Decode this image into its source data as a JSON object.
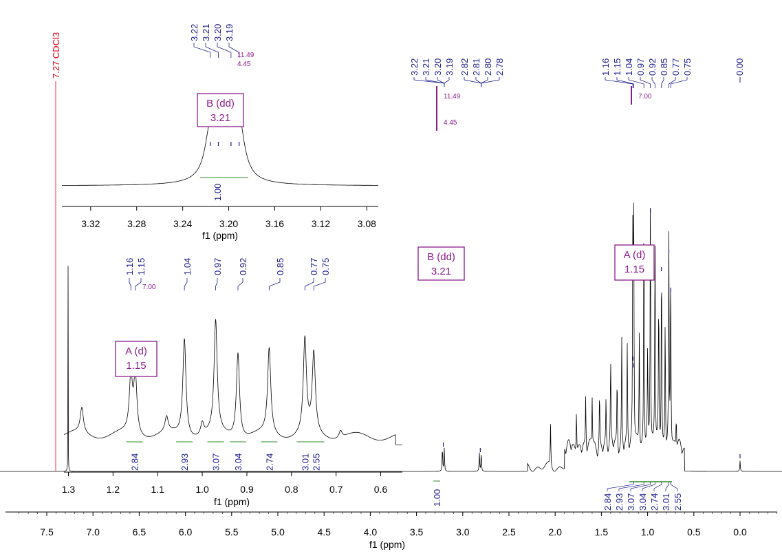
{
  "chart_data": {
    "type": "line",
    "title": "",
    "colors": {
      "trace": "#000000",
      "peak_label": "#1a1a8c",
      "solvent_label": "#e0001a",
      "multiplet": "#8b1a8b",
      "integral": "#2e8b2e"
    },
    "main": {
      "xlabel": "f1 (ppm)",
      "xlim": [
        7.9,
        -0.5
      ],
      "reversed": true,
      "xticks": [
        "7.5",
        "7.0",
        "6.5",
        "6.0",
        "5.5",
        "5.0",
        "4.5",
        "4.0",
        "3.5",
        "3.0",
        "2.5",
        "2.0",
        "1.5",
        "1.0",
        "0.5",
        "0.0"
      ],
      "peak_labels": [
        "3.22",
        "3.21",
        "3.20",
        "3.19",
        "2.82",
        "2.81",
        "2.80",
        "2.78",
        "1.16",
        "1.15",
        "1.04",
        "0.97",
        "0.92",
        "0.85",
        "0.77",
        "0.75",
        "0.00"
      ],
      "solvent_label": "7.27 CDCl3",
      "solvent_ppm": 7.27,
      "integrals": [
        {
          "ppm": 3.205,
          "value": "1.00"
        },
        {
          "ppm": 1.15,
          "value": "2.84"
        },
        {
          "ppm": 1.04,
          "value": "2.93"
        },
        {
          "ppm": 0.97,
          "value": "3.07"
        },
        {
          "ppm": 0.92,
          "value": "3.04"
        },
        {
          "ppm": 0.85,
          "value": "2.74"
        },
        {
          "ppm": 0.77,
          "value": "3.01"
        },
        {
          "ppm": 0.75,
          "value": "2.55"
        }
      ],
      "multiplets": [
        {
          "name": "B (dd)",
          "shift": "3.21",
          "j": [
            "11.49",
            "4.45"
          ],
          "ppm": 3.205
        },
        {
          "name": "A (d)",
          "shift": "1.15",
          "j": [
            "7.00"
          ],
          "ppm": 1.155
        }
      ],
      "peaks": [
        {
          "ppm": 1.16,
          "h": 0.82
        },
        {
          "ppm": 1.15,
          "h": 0.86
        },
        {
          "ppm": 1.04,
          "h": 0.96
        },
        {
          "ppm": 0.97,
          "h": 1.0
        },
        {
          "ppm": 0.92,
          "h": 0.84
        },
        {
          "ppm": 0.85,
          "h": 0.75
        },
        {
          "ppm": 0.77,
          "h": 0.78
        },
        {
          "ppm": 0.75,
          "h": 0.68
        },
        {
          "ppm": 0.88,
          "h": 0.55
        },
        {
          "ppm": 1.28,
          "h": 0.42
        },
        {
          "ppm": 1.4,
          "h": 0.33
        },
        {
          "ppm": 1.33,
          "h": 0.27
        },
        {
          "ppm": 1.22,
          "h": 0.38
        },
        {
          "ppm": 1.09,
          "h": 0.45
        },
        {
          "ppm": 1.0,
          "h": 0.35
        },
        {
          "ppm": 0.81,
          "h": 0.5
        },
        {
          "ppm": 0.69,
          "h": 0.12
        },
        {
          "ppm": 1.52,
          "h": 0.22
        },
        {
          "ppm": 1.6,
          "h": 0.2
        },
        {
          "ppm": 1.67,
          "h": 0.2
        },
        {
          "ppm": 1.77,
          "h": 0.18
        },
        {
          "ppm": 2.05,
          "h": 0.16
        },
        {
          "ppm": 1.45,
          "h": 0.18
        },
        {
          "ppm": 3.22,
          "h": 0.09
        },
        {
          "ppm": 3.2,
          "h": 0.09
        },
        {
          "ppm": 2.82,
          "h": 0.07
        },
        {
          "ppm": 2.8,
          "h": 0.07
        },
        {
          "ppm": 0.0,
          "h": 0.04
        }
      ]
    },
    "inset_b": {
      "xlabel": "f1 (ppm)",
      "xlim": [
        3.345,
        3.07
      ],
      "xticks": [
        "3.32",
        "3.28",
        "3.24",
        "3.20",
        "3.16",
        "3.12",
        "3.08"
      ],
      "integral": {
        "ppm_from": 3.225,
        "ppm_to": 3.183,
        "value": "1.00"
      },
      "multiplet": {
        "name": "B (dd)",
        "shift": "3.21"
      },
      "peaks": [
        {
          "ppm": 3.216,
          "h": 0.72
        },
        {
          "ppm": 3.209,
          "h": 0.77
        },
        {
          "ppm": 3.198,
          "h": 0.92
        },
        {
          "ppm": 3.191,
          "h": 0.8
        }
      ]
    },
    "inset_a": {
      "xlabel": "f1 (ppm)",
      "xlim": [
        1.31,
        0.57
      ],
      "xticks": [
        "1.3",
        "1.2",
        "1.1",
        "1.0",
        "0.9",
        "0.8",
        "0.7",
        "0.6"
      ],
      "peak_labels": [
        "1.16",
        "1.15",
        "1.04",
        "0.97",
        "0.92",
        "0.85",
        "0.77",
        "0.75"
      ],
      "j": "7.00",
      "multiplet": {
        "name": "A (d)",
        "shift": "1.15"
      },
      "integrals": [
        {
          "ppm": 1.152,
          "value": "2.84"
        },
        {
          "ppm": 1.04,
          "value": "2.93"
        },
        {
          "ppm": 0.97,
          "value": "3.07"
        },
        {
          "ppm": 0.92,
          "value": "3.04"
        },
        {
          "ppm": 0.85,
          "value": "2.74"
        },
        {
          "ppm": 0.77,
          "value": "3.01"
        },
        {
          "ppm": 0.745,
          "value": "2.55"
        }
      ],
      "peaks": [
        {
          "ppm": 1.16,
          "h": 0.45
        },
        {
          "ppm": 1.15,
          "h": 0.47
        },
        {
          "ppm": 1.04,
          "h": 0.79
        },
        {
          "ppm": 0.97,
          "h": 0.9
        },
        {
          "ppm": 0.92,
          "h": 0.69
        },
        {
          "ppm": 0.85,
          "h": 0.69
        },
        {
          "ppm": 0.77,
          "h": 0.76
        },
        {
          "ppm": 0.75,
          "h": 0.64
        },
        {
          "ppm": 1.27,
          "h": 0.2
        },
        {
          "ppm": 1.08,
          "h": 0.12
        },
        {
          "ppm": 1.0,
          "h": 0.1
        },
        {
          "ppm": 0.69,
          "h": 0.06
        }
      ]
    }
  }
}
